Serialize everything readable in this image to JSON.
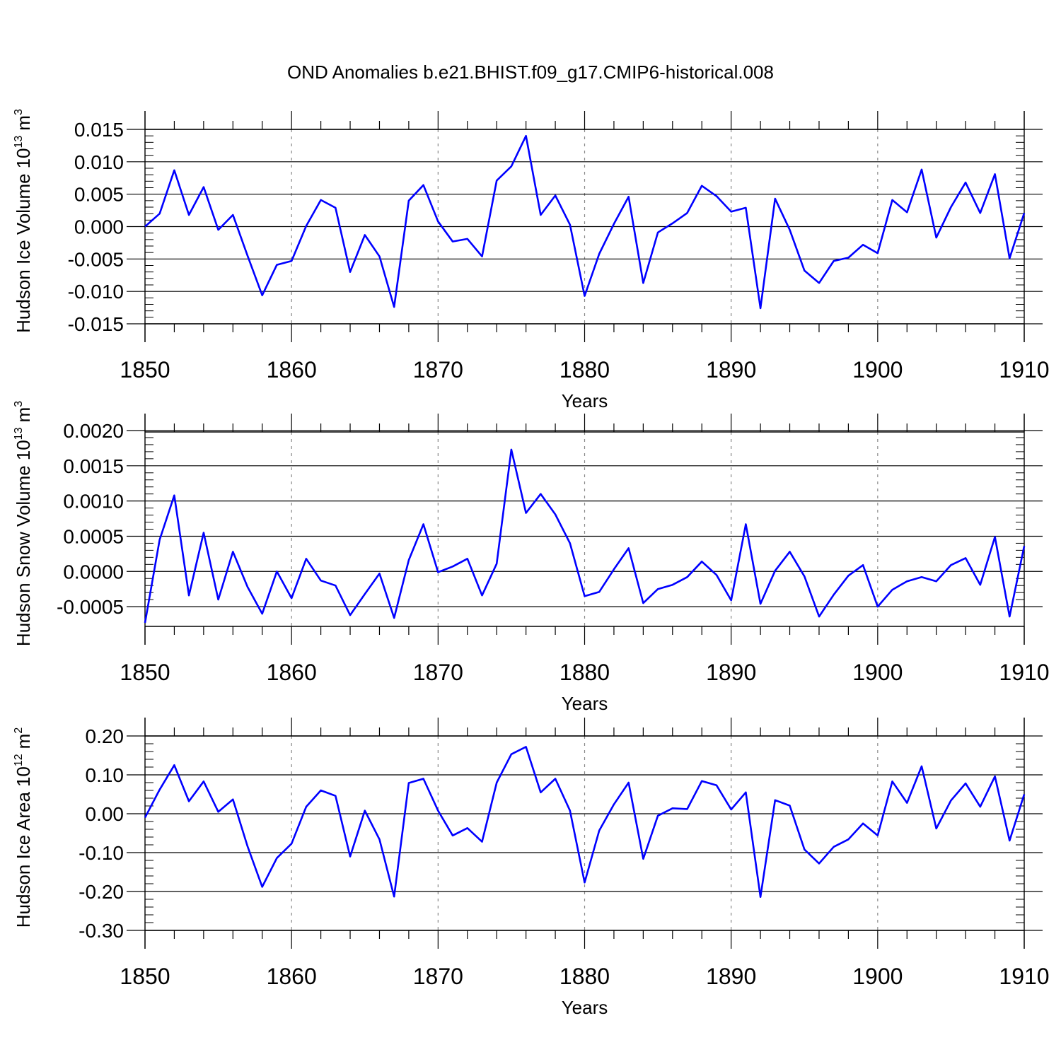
{
  "figure": {
    "title": "OND Anomalies b.e21.BHIST.f09_g17.CMIP6-historical.008",
    "line_color": "#0000ff",
    "axis_color": "#000000",
    "grid_color": "#888888"
  },
  "chart_data": [
    {
      "type": "line",
      "name": "hudson-ice-volume",
      "ylabel": "Hudson Ice Volume",
      "ylabel_scale_base": "10",
      "ylabel_scale_exp": "13",
      "ylabel_unit_base": "m",
      "ylabel_unit_exp": "3",
      "xlabel": "Years",
      "xlim": [
        1850,
        1910
      ],
      "ylim": [
        -0.015,
        0.015
      ],
      "x_ticks": [
        1850,
        1860,
        1870,
        1880,
        1890,
        1900,
        1910
      ],
      "x_tick_labels": [
        "1850",
        "1860",
        "1870",
        "1880",
        "1890",
        "1900",
        "1910"
      ],
      "y_ticks": [
        -0.015,
        -0.01,
        -0.005,
        0,
        0.005,
        0.01,
        0.015
      ],
      "y_tick_labels": [
        "-0.015",
        "-0.010",
        "-0.005",
        "0.000",
        "0.005",
        "0.010",
        "0.015"
      ],
      "grid_x": [
        1860,
        1870,
        1880,
        1890,
        1900
      ],
      "x": [
        1850,
        1851,
        1852,
        1853,
        1854,
        1855,
        1856,
        1857,
        1858,
        1859,
        1860,
        1861,
        1862,
        1863,
        1864,
        1865,
        1866,
        1867,
        1868,
        1869,
        1870,
        1871,
        1872,
        1873,
        1874,
        1875,
        1876,
        1877,
        1878,
        1879,
        1880,
        1881,
        1882,
        1883,
        1884,
        1885,
        1886,
        1887,
        1888,
        1889,
        1890,
        1891,
        1892,
        1893,
        1894,
        1895,
        1896,
        1897,
        1898,
        1899,
        1900,
        1901,
        1902,
        1903,
        1904,
        1905,
        1906,
        1907,
        1908,
        1909,
        1910
      ],
      "values": [
        0.0,
        0.002,
        0.0087,
        0.0018,
        0.0061,
        -0.0005,
        0.0018,
        -0.0045,
        -0.0106,
        -0.0059,
        -0.0053,
        0.0001,
        0.0041,
        0.0029,
        -0.007,
        -0.0013,
        -0.0046,
        -0.0124,
        0.004,
        0.0064,
        0.0008,
        -0.0023,
        -0.0019,
        -0.0046,
        0.0071,
        0.0093,
        0.014,
        0.0018,
        0.0048,
        0.0003,
        -0.0107,
        -0.0042,
        0.0004,
        0.0046,
        -0.0087,
        -0.0009,
        0.0005,
        0.0021,
        0.0063,
        0.0047,
        0.0023,
        0.0029,
        -0.0126,
        0.0043,
        -0.0005,
        -0.0068,
        -0.0087,
        -0.0053,
        -0.0048,
        -0.0028,
        -0.0041,
        0.0041,
        0.0022,
        0.0088,
        -0.0017,
        0.003,
        0.0068,
        0.0021,
        0.0081,
        -0.0049,
        0.0021
      ]
    },
    {
      "type": "line",
      "name": "hudson-snow-volume",
      "ylabel": "Hudson Snow Volume",
      "ylabel_scale_base": "10",
      "ylabel_scale_exp": "13",
      "ylabel_unit_base": "m",
      "ylabel_unit_exp": "3",
      "xlabel": "Years",
      "xlim": [
        1850,
        1910
      ],
      "ylim": [
        -0.00078,
        0.00198
      ],
      "x_ticks": [
        1850,
        1860,
        1870,
        1880,
        1890,
        1900,
        1910
      ],
      "x_tick_labels": [
        "1850",
        "1860",
        "1870",
        "1880",
        "1890",
        "1900",
        "1910"
      ],
      "y_ticks": [
        -0.0005,
        0,
        0.0005,
        0.001,
        0.0015,
        0.002
      ],
      "y_tick_labels": [
        "-0.0005",
        "0.0000",
        "0.0005",
        "0.0010",
        "0.0015",
        "0.0020"
      ],
      "grid_x": [
        1860,
        1870,
        1880,
        1890,
        1900
      ],
      "x": [
        1850,
        1851,
        1852,
        1853,
        1854,
        1855,
        1856,
        1857,
        1858,
        1859,
        1860,
        1861,
        1862,
        1863,
        1864,
        1865,
        1866,
        1867,
        1868,
        1869,
        1870,
        1871,
        1872,
        1873,
        1874,
        1875,
        1876,
        1877,
        1878,
        1879,
        1880,
        1881,
        1882,
        1883,
        1884,
        1885,
        1886,
        1887,
        1888,
        1889,
        1890,
        1891,
        1892,
        1893,
        1894,
        1895,
        1896,
        1897,
        1898,
        1899,
        1900,
        1901,
        1902,
        1903,
        1904,
        1905,
        1906,
        1907,
        1908,
        1909,
        1910
      ],
      "values": [
        -0.00073,
        0.00045,
        0.00108,
        -0.00034,
        0.00055,
        -0.0004,
        0.00028,
        -0.00022,
        -0.0006,
        0.0,
        -0.00038,
        0.00018,
        -0.00013,
        -0.0002,
        -0.00062,
        -0.00032,
        -3e-05,
        -0.00066,
        0.00016,
        0.00067,
        -1e-05,
        7e-05,
        0.00018,
        -0.00034,
        0.00011,
        0.00173,
        0.00083,
        0.0011,
        0.00081,
        0.0004,
        -0.00035,
        -0.00029,
        3e-05,
        0.00033,
        -0.00045,
        -0.00025,
        -0.00019,
        -8e-05,
        0.00014,
        -5e-05,
        -0.00041,
        0.00067,
        -0.00046,
        1e-05,
        0.00028,
        -7e-05,
        -0.00064,
        -0.00033,
        -6e-05,
        9e-05,
        -0.0005,
        -0.00026,
        -0.00014,
        -8e-05,
        -0.00014,
        9e-05,
        0.00019,
        -0.00019,
        0.00049,
        -0.00064,
        0.00036
      ]
    },
    {
      "type": "line",
      "name": "hudson-ice-area",
      "ylabel": "Hudson Ice Area",
      "ylabel_scale_base": "10",
      "ylabel_scale_exp": "12",
      "ylabel_unit_base": "m",
      "ylabel_unit_exp": "2",
      "xlabel": "Years",
      "xlim": [
        1850,
        1910
      ],
      "ylim": [
        -0.3,
        0.2
      ],
      "x_ticks": [
        1850,
        1860,
        1870,
        1880,
        1890,
        1900,
        1910
      ],
      "x_tick_labels": [
        "1850",
        "1860",
        "1870",
        "1880",
        "1890",
        "1900",
        "1910"
      ],
      "y_ticks": [
        -0.3,
        -0.2,
        -0.1,
        0,
        0.1,
        0.2
      ],
      "y_tick_labels": [
        "-0.30",
        "-0.20",
        "-0.10",
        "0.00",
        "0.10",
        "0.20"
      ],
      "grid_x": [
        1860,
        1870,
        1880,
        1890,
        1900
      ],
      "x": [
        1850,
        1851,
        1852,
        1853,
        1854,
        1855,
        1856,
        1857,
        1858,
        1859,
        1860,
        1861,
        1862,
        1863,
        1864,
        1865,
        1866,
        1867,
        1868,
        1869,
        1870,
        1871,
        1872,
        1873,
        1874,
        1875,
        1876,
        1877,
        1878,
        1879,
        1880,
        1881,
        1882,
        1883,
        1884,
        1885,
        1886,
        1887,
        1888,
        1889,
        1890,
        1891,
        1892,
        1893,
        1894,
        1895,
        1896,
        1897,
        1898,
        1899,
        1900,
        1901,
        1902,
        1903,
        1904,
        1905,
        1906,
        1907,
        1908,
        1909,
        1910
      ],
      "values": [
        -0.01,
        0.062,
        0.125,
        0.032,
        0.083,
        0.005,
        0.037,
        -0.084,
        -0.188,
        -0.114,
        -0.077,
        0.018,
        0.06,
        0.046,
        -0.11,
        0.008,
        -0.066,
        -0.213,
        0.079,
        0.09,
        0.008,
        -0.056,
        -0.037,
        -0.072,
        0.08,
        0.153,
        0.172,
        0.055,
        0.09,
        0.008,
        -0.177,
        -0.043,
        0.024,
        0.08,
        -0.116,
        -0.005,
        0.014,
        0.012,
        0.084,
        0.073,
        0.011,
        0.055,
        -0.214,
        0.035,
        0.021,
        -0.092,
        -0.128,
        -0.085,
        -0.066,
        -0.025,
        -0.056,
        0.083,
        0.028,
        0.122,
        -0.038,
        0.034,
        0.078,
        0.018,
        0.096,
        -0.069,
        0.05
      ]
    }
  ]
}
